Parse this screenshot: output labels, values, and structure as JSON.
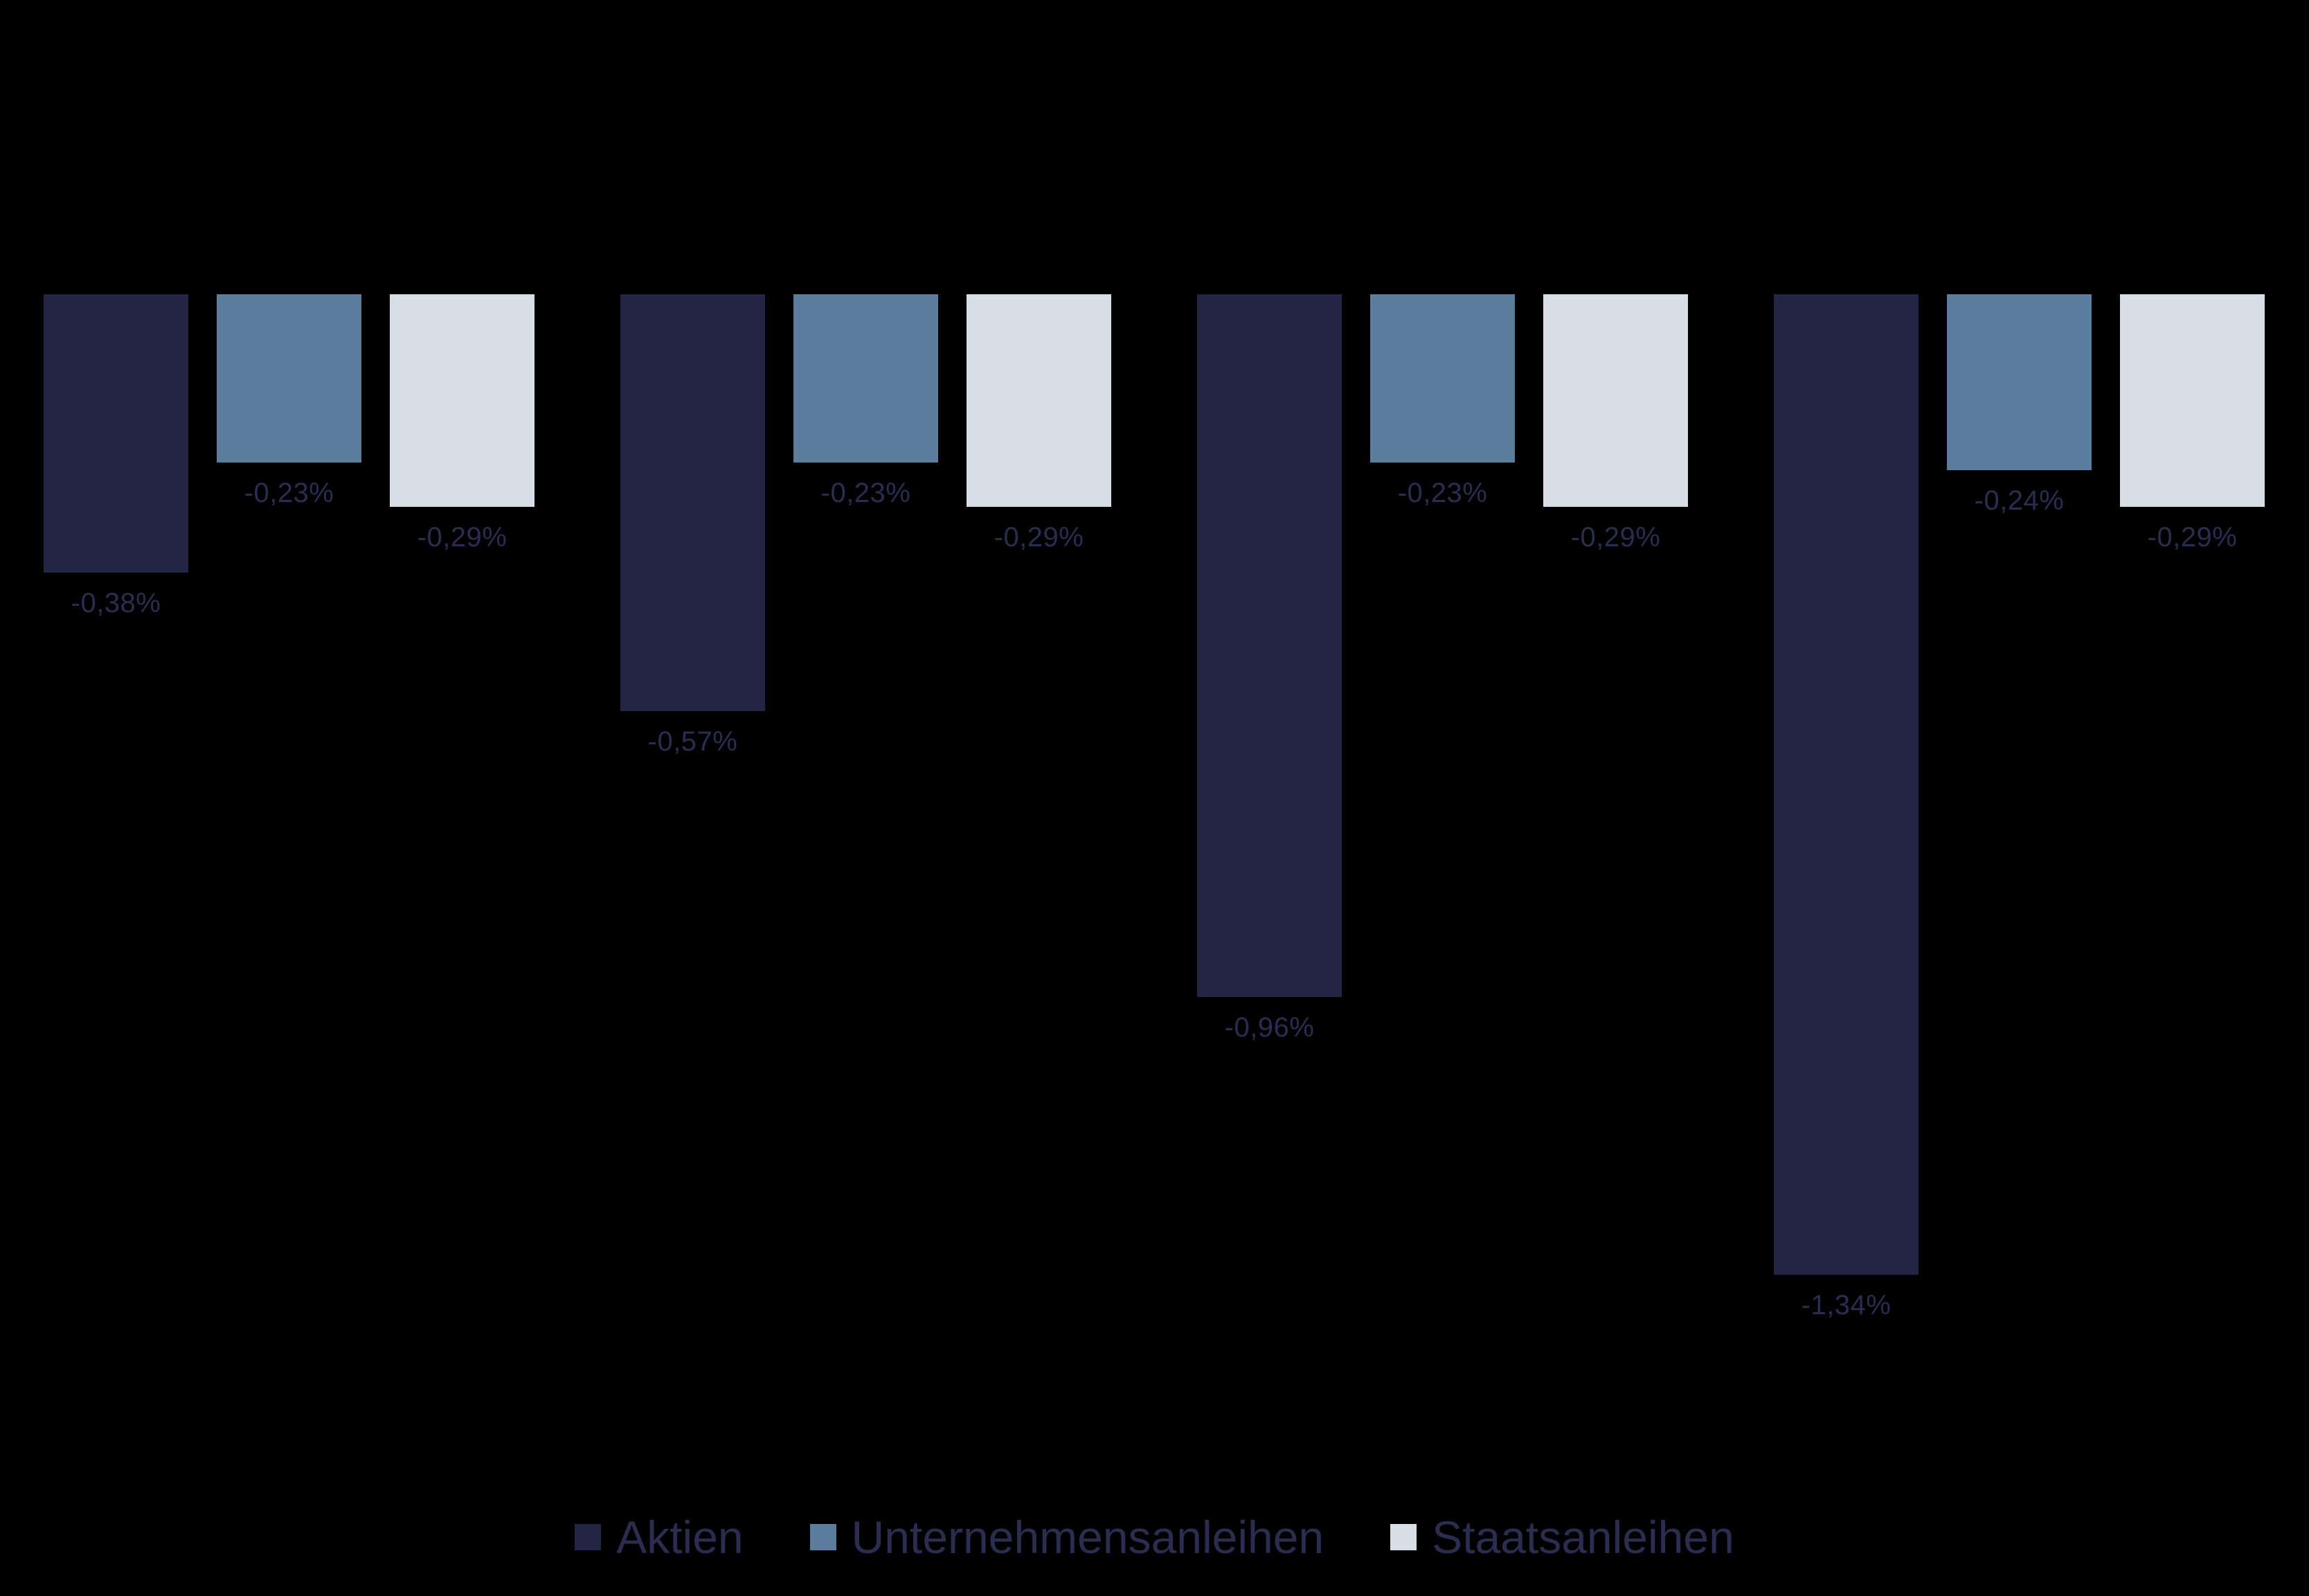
{
  "background_color": "#000000",
  "chart_data": {
    "type": "bar",
    "title": "",
    "orientation": "vertical",
    "categories": [
      "",
      "",
      "",
      ""
    ],
    "series": [
      {
        "name": "Aktien",
        "color": "#232544",
        "values": [
          -0.38,
          -0.57,
          -0.96,
          -1.34
        ],
        "labels": [
          "-0,38%",
          "-0,57%",
          "-0,96%",
          "-1,34%"
        ]
      },
      {
        "name": "Unternehmensanleihen",
        "color": "#5C7E9E",
        "values": [
          -0.23,
          -0.23,
          -0.23,
          -0.24
        ],
        "labels": [
          "-0,23%",
          "-0,23%",
          "-0,23%",
          "-0,24%"
        ]
      },
      {
        "name": "Staatsanleihen",
        "color": "#D8DEE6",
        "values": [
          -0.29,
          -0.29,
          -0.29,
          -0.29
        ],
        "labels": [
          "-0,29%",
          "-0,29%",
          "-0,29%",
          "-0,29%"
        ]
      }
    ],
    "value_format": "percent-comma",
    "ylim": [
      -1.45,
      0
    ],
    "grid": false,
    "axes_visible": false,
    "legend_position": "bottom",
    "data_label_color": "#2A2D4F",
    "legend_text_color": "#2A2D4F"
  }
}
